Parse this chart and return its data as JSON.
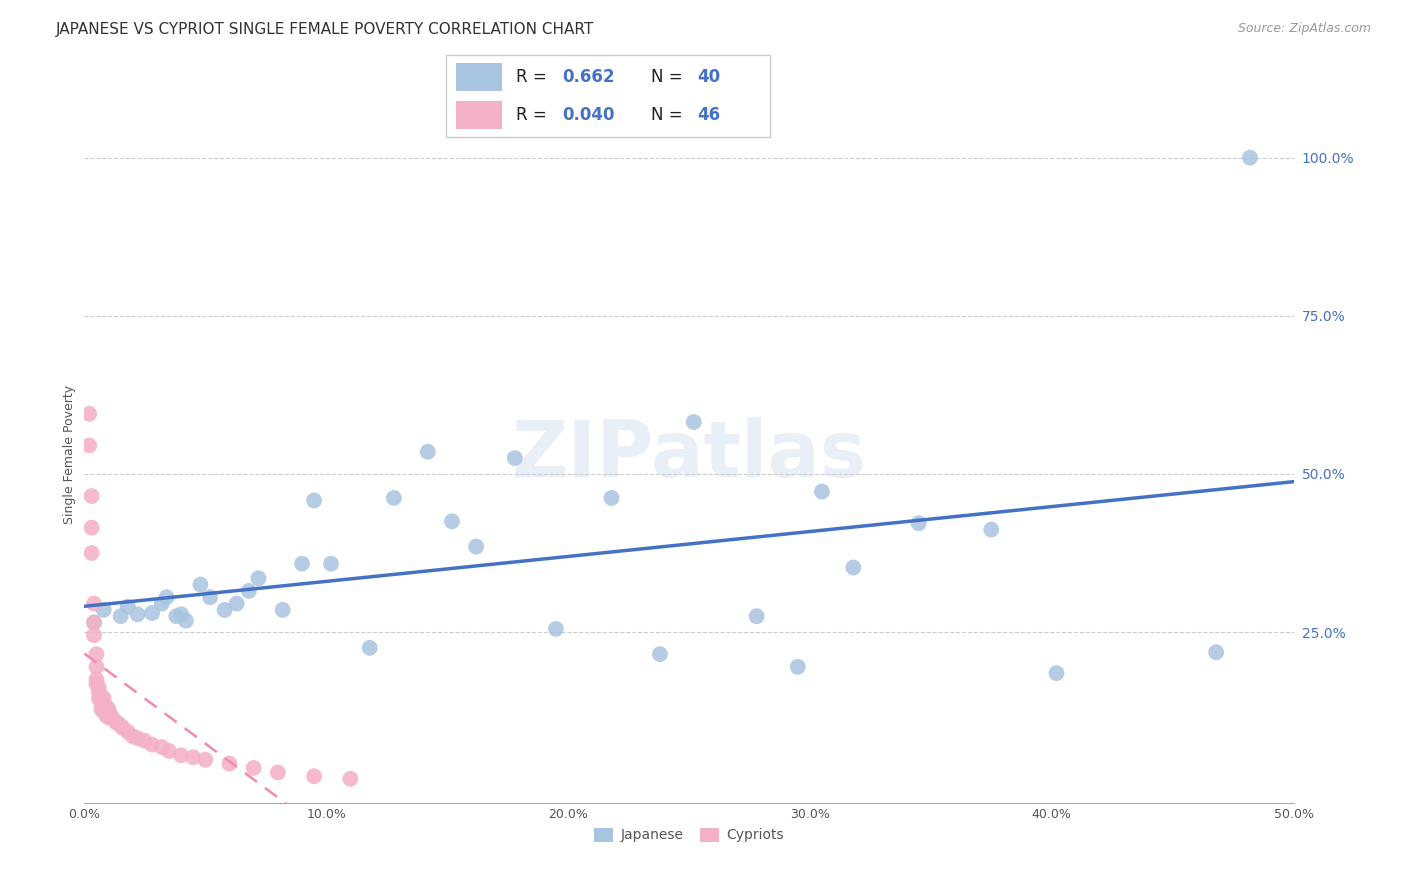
{
  "title": "JAPANESE VS CYPRIOT SINGLE FEMALE POVERTY CORRELATION CHART",
  "source": "Source: ZipAtlas.com",
  "ylabel": "Single Female Poverty",
  "xlim": [
    0.0,
    0.5
  ],
  "ylim": [
    -0.02,
    1.08
  ],
  "ytick_labels": [
    "25.0%",
    "50.0%",
    "75.0%",
    "100.0%"
  ],
  "ytick_values": [
    0.25,
    0.5,
    0.75,
    1.0
  ],
  "xtick_labels": [
    "0.0%",
    "10.0%",
    "20.0%",
    "30.0%",
    "40.0%",
    "50.0%"
  ],
  "xtick_values": [
    0.0,
    0.1,
    0.2,
    0.3,
    0.4,
    0.5
  ],
  "legend_r_japanese": "0.662",
  "legend_n_japanese": "40",
  "legend_r_cypriot": "0.040",
  "legend_n_cypriot": "46",
  "japanese_color": "#a8c4e0",
  "cypriot_color": "#f4b0c4",
  "japanese_line_color": "#4472c4",
  "cypriot_line_color": "#f48aaa",
  "watermark": "ZIPatlas",
  "japanese_x": [
    0.004,
    0.008,
    0.015,
    0.018,
    0.022,
    0.028,
    0.032,
    0.034,
    0.038,
    0.04,
    0.042,
    0.048,
    0.052,
    0.058,
    0.063,
    0.068,
    0.072,
    0.082,
    0.09,
    0.095,
    0.102,
    0.118,
    0.128,
    0.142,
    0.152,
    0.162,
    0.178,
    0.195,
    0.218,
    0.238,
    0.252,
    0.278,
    0.295,
    0.305,
    0.318,
    0.345,
    0.375,
    0.402,
    0.468,
    0.482
  ],
  "japanese_y": [
    0.265,
    0.285,
    0.275,
    0.29,
    0.278,
    0.28,
    0.295,
    0.305,
    0.275,
    0.278,
    0.268,
    0.325,
    0.305,
    0.285,
    0.295,
    0.315,
    0.335,
    0.285,
    0.358,
    0.458,
    0.358,
    0.225,
    0.462,
    0.535,
    0.425,
    0.385,
    0.525,
    0.255,
    0.462,
    0.215,
    0.582,
    0.275,
    0.195,
    0.472,
    0.352,
    0.422,
    0.412,
    0.185,
    0.218,
    1.0
  ],
  "cypriot_x": [
    0.002,
    0.002,
    0.003,
    0.003,
    0.003,
    0.004,
    0.004,
    0.004,
    0.005,
    0.005,
    0.005,
    0.005,
    0.006,
    0.006,
    0.006,
    0.007,
    0.007,
    0.007,
    0.008,
    0.008,
    0.008,
    0.009,
    0.009,
    0.01,
    0.01,
    0.011,
    0.012,
    0.013,
    0.014,
    0.015,
    0.016,
    0.018,
    0.02,
    0.022,
    0.025,
    0.028,
    0.032,
    0.035,
    0.04,
    0.045,
    0.05,
    0.06,
    0.07,
    0.08,
    0.095,
    0.11
  ],
  "cypriot_y": [
    0.595,
    0.545,
    0.465,
    0.415,
    0.375,
    0.295,
    0.265,
    0.245,
    0.215,
    0.195,
    0.175,
    0.168,
    0.162,
    0.155,
    0.145,
    0.148,
    0.138,
    0.128,
    0.145,
    0.135,
    0.125,
    0.132,
    0.118,
    0.128,
    0.115,
    0.118,
    0.112,
    0.108,
    0.105,
    0.102,
    0.098,
    0.092,
    0.085,
    0.082,
    0.078,
    0.072,
    0.068,
    0.062,
    0.055,
    0.052,
    0.048,
    0.042,
    0.035,
    0.028,
    0.022,
    0.018
  ],
  "title_fontsize": 11,
  "label_fontsize": 9,
  "tick_fontsize": 9,
  "legend_fontsize": 12,
  "source_fontsize": 9
}
